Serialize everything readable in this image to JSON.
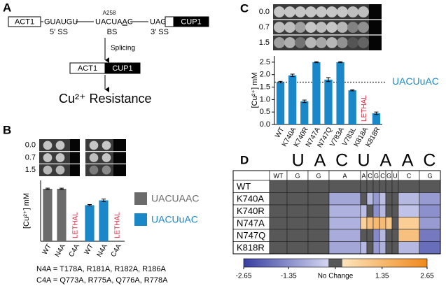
{
  "panel_labels": [
    "A",
    "B",
    "C",
    "D"
  ],
  "diagram": {
    "exon1": "ACT1",
    "five_prime_seq": "GUAUGU",
    "branch_prefix": "UACUA",
    "branch_site": "A",
    "branch_suffix": "C",
    "site_label": "A258",
    "three_prime_seq": "UAG",
    "exon2": "CUP1",
    "five_ss": "5′ SS",
    "bs": "BS",
    "three_ss": "3′ SS",
    "step": "Splicing",
    "product_exon1": "ACT1",
    "product_exon2": "CUP1",
    "result": "Cu²⁺ Resistance"
  },
  "chart_data": [
    {
      "type": "bar",
      "y_label": "[Cu²⁺] mM",
      "plate_rows": [
        "0.0",
        "0.7",
        "1.5"
      ],
      "categories": [
        "WT",
        "N4A",
        "C4A",
        "WT",
        "N4A",
        "C4A"
      ],
      "series": [
        {
          "name": "UACUAAC",
          "color": "#6b6b6b",
          "values": [
            2.5,
            2.5,
            null,
            null,
            null,
            null
          ],
          "errors": [
            0.03,
            0.03,
            null,
            null,
            null,
            null
          ]
        },
        {
          "name": "UACUuAC",
          "color": "#1a87c8",
          "values": [
            null,
            null,
            null,
            1.72,
            1.95,
            null
          ],
          "errors": [
            null,
            null,
            null,
            0.03,
            0.06,
            null
          ]
        }
      ],
      "annotations": [
        null,
        null,
        "LETHAL",
        null,
        null,
        "LETHAL"
      ],
      "ylim": [
        0,
        2.9
      ],
      "legend": "right"
    },
    {
      "type": "bar",
      "y_label": "[Cu²⁺] mM",
      "plate_rows": [
        "0.0",
        "0.7",
        "1.5"
      ],
      "categories": [
        "WT",
        "K740A",
        "K740R",
        "N747A",
        "N747Q",
        "V783A",
        "V783L",
        "K818A",
        "K818R"
      ],
      "values": [
        1.7,
        1.97,
        0.93,
        2.5,
        1.8,
        2.5,
        1.37,
        null,
        0.45
      ],
      "errors": [
        0.03,
        0.05,
        0.05,
        0.02,
        0.08,
        0.02,
        0.02,
        null,
        0.05
      ],
      "color": "#1a87c8",
      "annotations": [
        null,
        null,
        null,
        null,
        null,
        null,
        null,
        "LETHAL",
        null
      ],
      "reference_line": {
        "value": 1.7,
        "text": "UACUuAC"
      },
      "ylim": [
        0,
        2.75
      ],
      "yticks": [
        {
          "value": 0,
          "label": "0.0"
        },
        0.5,
        {
          "value": 1,
          "label": "1.0"
        },
        1.5,
        {
          "value": 2,
          "label": "2.0"
        },
        2.5
      ]
    },
    {
      "type": "heatmap",
      "header_letters": [
        "U",
        "A",
        "C",
        "U",
        "A",
        "A",
        "C"
      ],
      "columns": [
        "WT",
        "G",
        "G",
        "A",
        "A",
        "C",
        "G",
        "C",
        "G",
        "U",
        "C",
        "G"
      ],
      "rows": [
        "WT",
        "K740A",
        "K740R",
        "N747A",
        "N747Q",
        "K818R"
      ],
      "values": [
        [
          0,
          0,
          0,
          0,
          0,
          0,
          0,
          0,
          0,
          0,
          0,
          0
        ],
        [
          0,
          0,
          0,
          -0.8,
          0,
          -0.5,
          -1.0,
          -0.4,
          0,
          0,
          -0.5,
          -1.0
        ],
        [
          0,
          0,
          0,
          -0.6,
          -0.4,
          0,
          -1.2,
          -0.5,
          0,
          0,
          -0.3,
          -1.2
        ],
        [
          0,
          0,
          0,
          -0.6,
          0.5,
          1.0,
          1.2,
          1.2,
          0.8,
          0,
          0.6,
          -1.0
        ],
        [
          0,
          0,
          0,
          -0.7,
          0,
          0,
          -1.3,
          -0.5,
          0,
          0,
          1.0,
          -1.6
        ],
        [
          0,
          0,
          0,
          -0.8,
          -0.5,
          0,
          -1.0,
          -0.6,
          0,
          0,
          -0.5,
          -1.8
        ]
      ],
      "colorbar": {
        "lim": [
          -2.65,
          2.65
        ],
        "ticks": [
          -2.65,
          -1.35,
          {
            "value": 0,
            "label": "No Change"
          },
          1.35,
          2.65
        ]
      }
    }
  ],
  "footnotes": [
    "N4A = T178A, R181A, R182A, R186A",
    "C4A = Q773A, R775A, Q776A, R778A"
  ]
}
